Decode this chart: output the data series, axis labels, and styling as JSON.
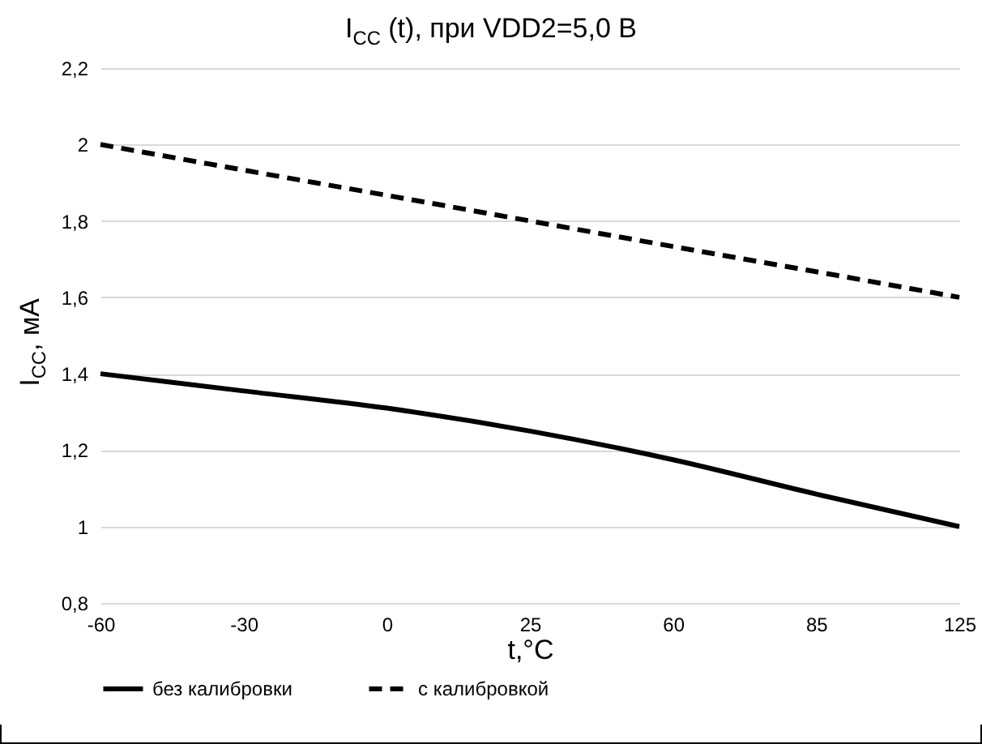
{
  "chart_data": {
    "type": "line",
    "title": "I$_{CC}$ (t), при VDD2=5,0 В",
    "xlabel": "t,°C",
    "ylabel": "I$_{CC}$, мА",
    "categories": [
      "-60",
      "-30",
      "0",
      "25",
      "60",
      "85",
      "125"
    ],
    "series": [
      {
        "name": "без калибровки",
        "color": "#000000",
        "line_style": "solid",
        "values": [
          1.4,
          1.355,
          1.31,
          1.25,
          1.175,
          1.085,
          1.0
        ]
      },
      {
        "name": "с калибровкой",
        "color": "#000000",
        "line_style": "dashed",
        "values": [
          2.0,
          1.933,
          1.867,
          1.8,
          1.733,
          1.667,
          1.6
        ]
      }
    ],
    "ylim": [
      0.8,
      2.2
    ],
    "yticks": [
      {
        "value": 0.8,
        "label": "0,8"
      },
      1,
      {
        "value": 1.2,
        "label": "1,2"
      },
      {
        "value": 1.4,
        "label": "1,4"
      },
      {
        "value": 1.6,
        "label": "1,6"
      },
      {
        "value": 1.8,
        "label": "1,8"
      },
      2,
      {
        "value": 2.2,
        "label": "2,2"
      }
    ],
    "grid": "y",
    "legend": "bottom",
    "marker": "none"
  }
}
